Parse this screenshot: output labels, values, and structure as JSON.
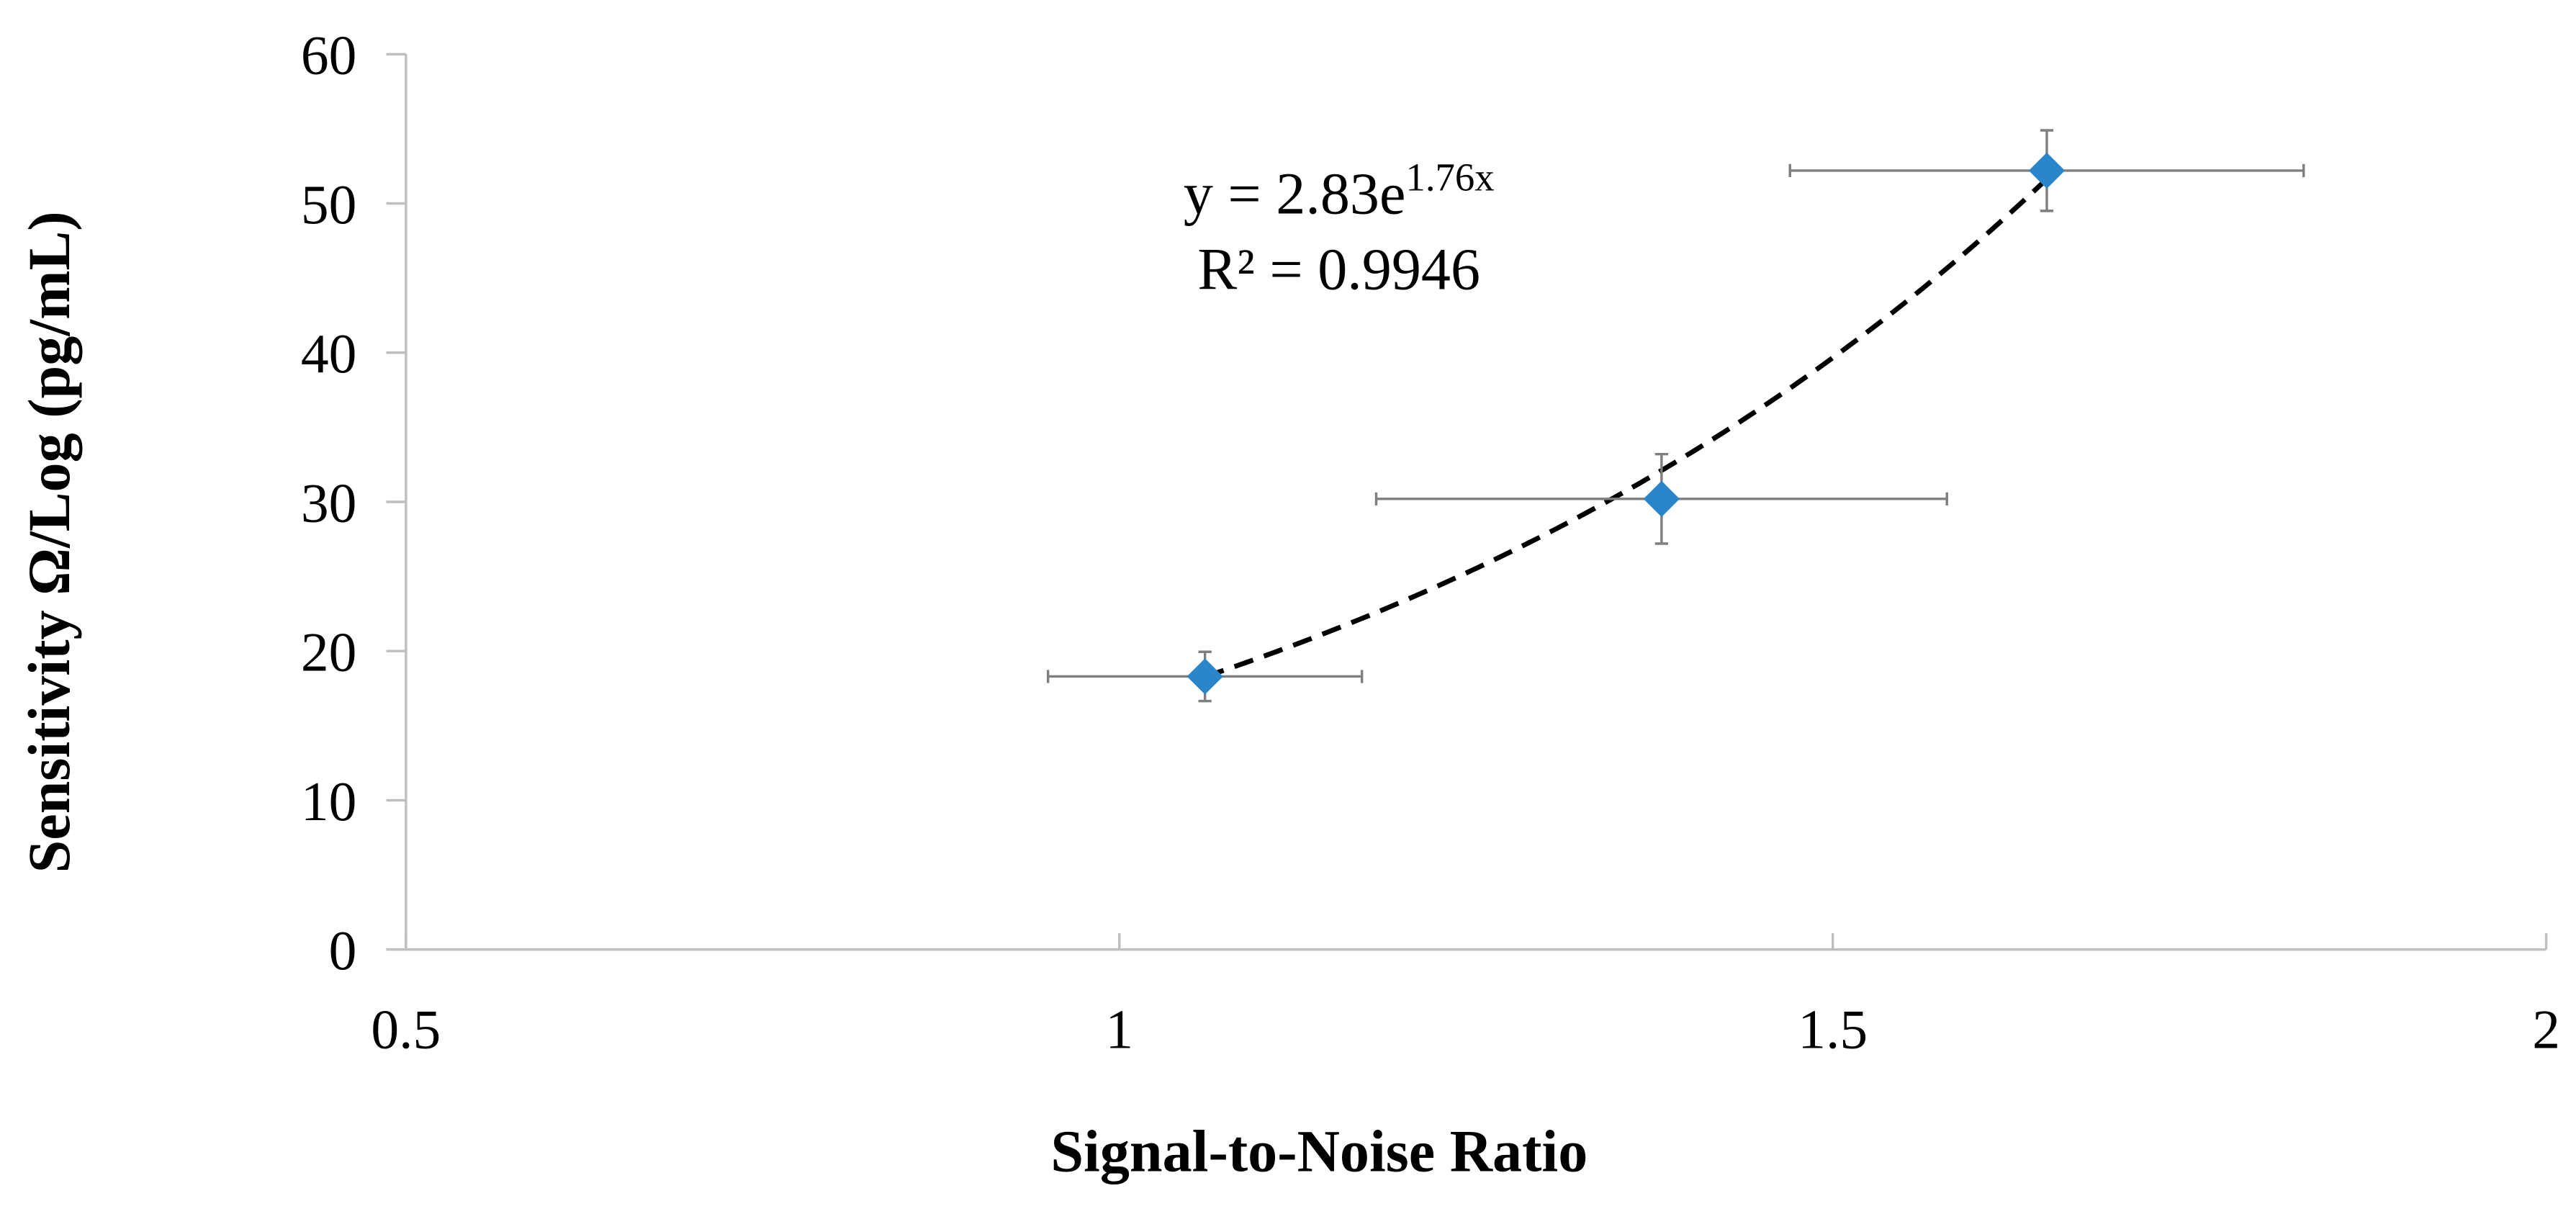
{
  "chart_data": {
    "type": "scatter",
    "x_label": "Signal-to-Noise Ratio",
    "y_label": "Sensitivity Ω/Log (pg/mL)",
    "series": [
      {
        "color": "#2a86c9",
        "error_color": "#7f7f7f",
        "x": [
          1.06,
          1.38,
          1.65
        ],
        "values": [
          18.3,
          30.2,
          52.2
        ],
        "x_err": [
          0.11,
          0.2,
          0.18
        ],
        "y_err": [
          1.65,
          3,
          2.7
        ]
      }
    ],
    "trendline": {
      "equation": "y = 2.83e",
      "exponent": "1.76x",
      "r_squared": "R² = 0.9946",
      "a": 2.83,
      "b": 1.76,
      "dashed": true,
      "color": "#000000"
    },
    "xlim": [
      0.5,
      2
    ],
    "xticks": [
      0.5,
      1,
      1.5,
      2
    ],
    "ylim": [
      0,
      60
    ],
    "yticks": [
      0,
      10,
      20,
      30,
      40,
      50,
      60
    ],
    "grid": false
  }
}
